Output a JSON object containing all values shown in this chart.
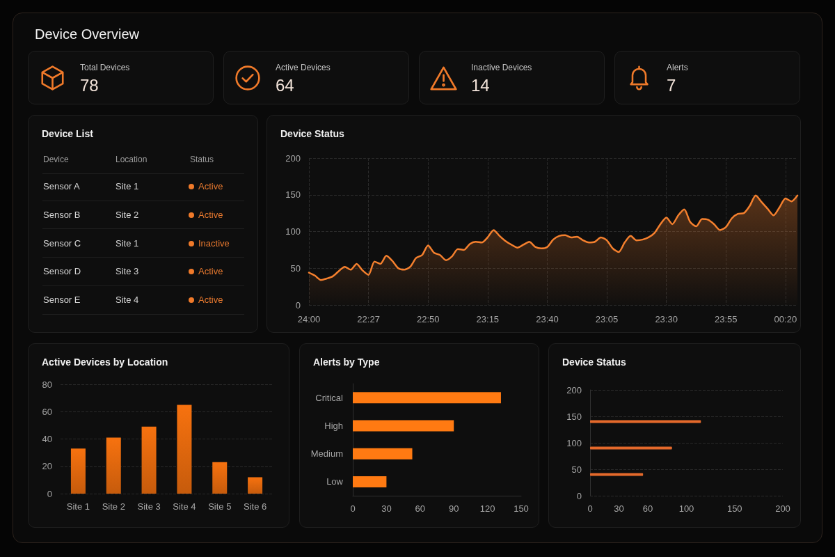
{
  "chart_data": [
    {
      "type": "other",
      "title": "Device Overview",
      "categories": [
        "Total Devices",
        "Active Devices",
        "Inactive Devices",
        "Alerts"
      ],
      "values": [
        78,
        64,
        14,
        7
      ],
      "data_labels": true
    },
    {
      "type": "other",
      "title": "Device List",
      "annotations": [
        "Device",
        "Location",
        "Status",
        "Sensor A",
        "Site 1",
        "Active",
        "Sensor B",
        "Site 2",
        "Active",
        "Sensor C",
        "Site 1",
        "Inactive",
        "Sensor D",
        "Site 3",
        "Active",
        "Sensor E",
        "Site 4",
        "Active"
      ]
    },
    {
      "type": "area",
      "title": "Device Status",
      "categories": [
        "24:00",
        null,
        null,
        null,
        null,
        null,
        null,
        null,
        null,
        null,
        "22:27",
        null,
        null,
        null,
        null,
        null,
        null,
        null,
        null,
        null,
        "22:50",
        null,
        null,
        null,
        null,
        null,
        null,
        null,
        null,
        null,
        "23:15",
        null,
        null,
        null,
        null,
        null,
        null,
        null,
        null,
        null,
        "23:40",
        null,
        null,
        null,
        null,
        null,
        null,
        null,
        null,
        null,
        "23:05",
        null,
        null,
        null,
        null,
        null,
        null,
        null,
        null,
        null,
        "23:30",
        null,
        null,
        null,
        null,
        null,
        null,
        null,
        null,
        null,
        "23:55",
        null,
        null,
        null,
        null,
        null,
        null,
        null,
        null,
        null,
        "00:20",
        null,
        null
      ],
      "values": [
        44,
        40,
        34,
        36,
        39,
        46,
        52,
        48,
        56,
        47,
        41,
        59,
        56,
        67,
        60,
        50,
        48,
        52,
        64,
        68,
        81,
        71,
        68,
        61,
        66,
        76,
        75,
        83,
        86,
        85,
        92,
        102,
        94,
        87,
        82,
        78,
        82,
        86,
        79,
        77,
        79,
        89,
        94,
        95,
        92,
        93,
        88,
        85,
        86,
        92,
        88,
        77,
        72,
        85,
        94,
        88,
        89,
        92,
        98,
        110,
        119,
        110,
        122,
        130,
        113,
        107,
        117,
        116,
        110,
        102,
        106,
        118,
        124,
        125,
        135,
        149,
        140,
        131,
        122,
        133,
        145,
        141,
        149
      ],
      "color": "#f5802e",
      "ylim": [
        0,
        200
      ],
      "yticks": [
        0,
        50,
        100,
        150,
        200
      ],
      "grid": true
    },
    {
      "type": "bar",
      "title": "Active Devices by Location",
      "categories": [
        "Site 1",
        "Site 2",
        "Site 3",
        "Site 4",
        "Site 5",
        "Site 6"
      ],
      "values": [
        33,
        41,
        49,
        65,
        23,
        12
      ],
      "color": "#f7720f",
      "ylim": [
        0,
        80
      ],
      "yticks": [
        0,
        20,
        40,
        60,
        80
      ],
      "grid": "y"
    },
    {
      "type": "bar",
      "orientation": "horizontal",
      "title": "Alerts by Type",
      "categories": [
        "Critical",
        "High",
        "Medium",
        "Low"
      ],
      "values": [
        132,
        90,
        53,
        30
      ],
      "color": "#ff7a12",
      "xlim": [
        0,
        150
      ],
      "xticks": [
        0,
        30,
        60,
        90,
        120,
        150
      ],
      "grid": false
    },
    {
      "type": "bar",
      "orientation": "horizontal",
      "title": "Device Status",
      "x": [
        140,
        90,
        40
      ],
      "values": [
        115,
        85,
        55
      ],
      "color": "#e4692b",
      "xlim": [
        0,
        200
      ],
      "xticks": [
        0,
        30,
        60,
        100,
        150,
        200
      ],
      "ylim": [
        0,
        200
      ],
      "yticks": [
        0,
        50,
        100,
        150,
        200
      ],
      "grid": "y"
    }
  ]
}
